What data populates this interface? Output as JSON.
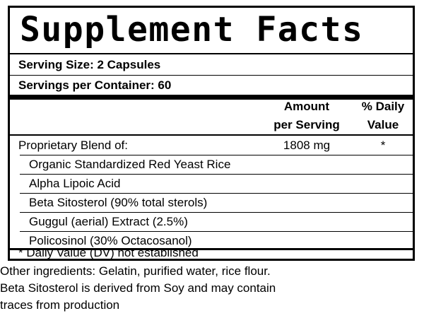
{
  "title": "Supplement Facts",
  "serving_size": "Serving Size:  2 Capsules",
  "servings_per_container": "Servings per Container: 60",
  "columns": {
    "amount_line1": "Amount",
    "amount_line2": "per Serving",
    "dv_line1": "% Daily",
    "dv_line2": "Value"
  },
  "blend": {
    "name": "Proprietary Blend of:",
    "amount": "1808 mg",
    "dv": "*"
  },
  "ingredients": [
    "Organic Standardized Red Yeast Rice",
    "Alpha Lipoic Acid",
    "Beta Sitosterol (90% total sterols)",
    "Guggul (aerial) Extract (2.5%)",
    "Policosinol (30% Octacosanol)"
  ],
  "footnote": "* Daily Value (DV) not established",
  "other_ingredients": [
    "Other ingredients: Gelatin, purified water, rice flour.",
    "Beta Sitosterol is derived from Soy and may contain",
    "traces from production"
  ]
}
